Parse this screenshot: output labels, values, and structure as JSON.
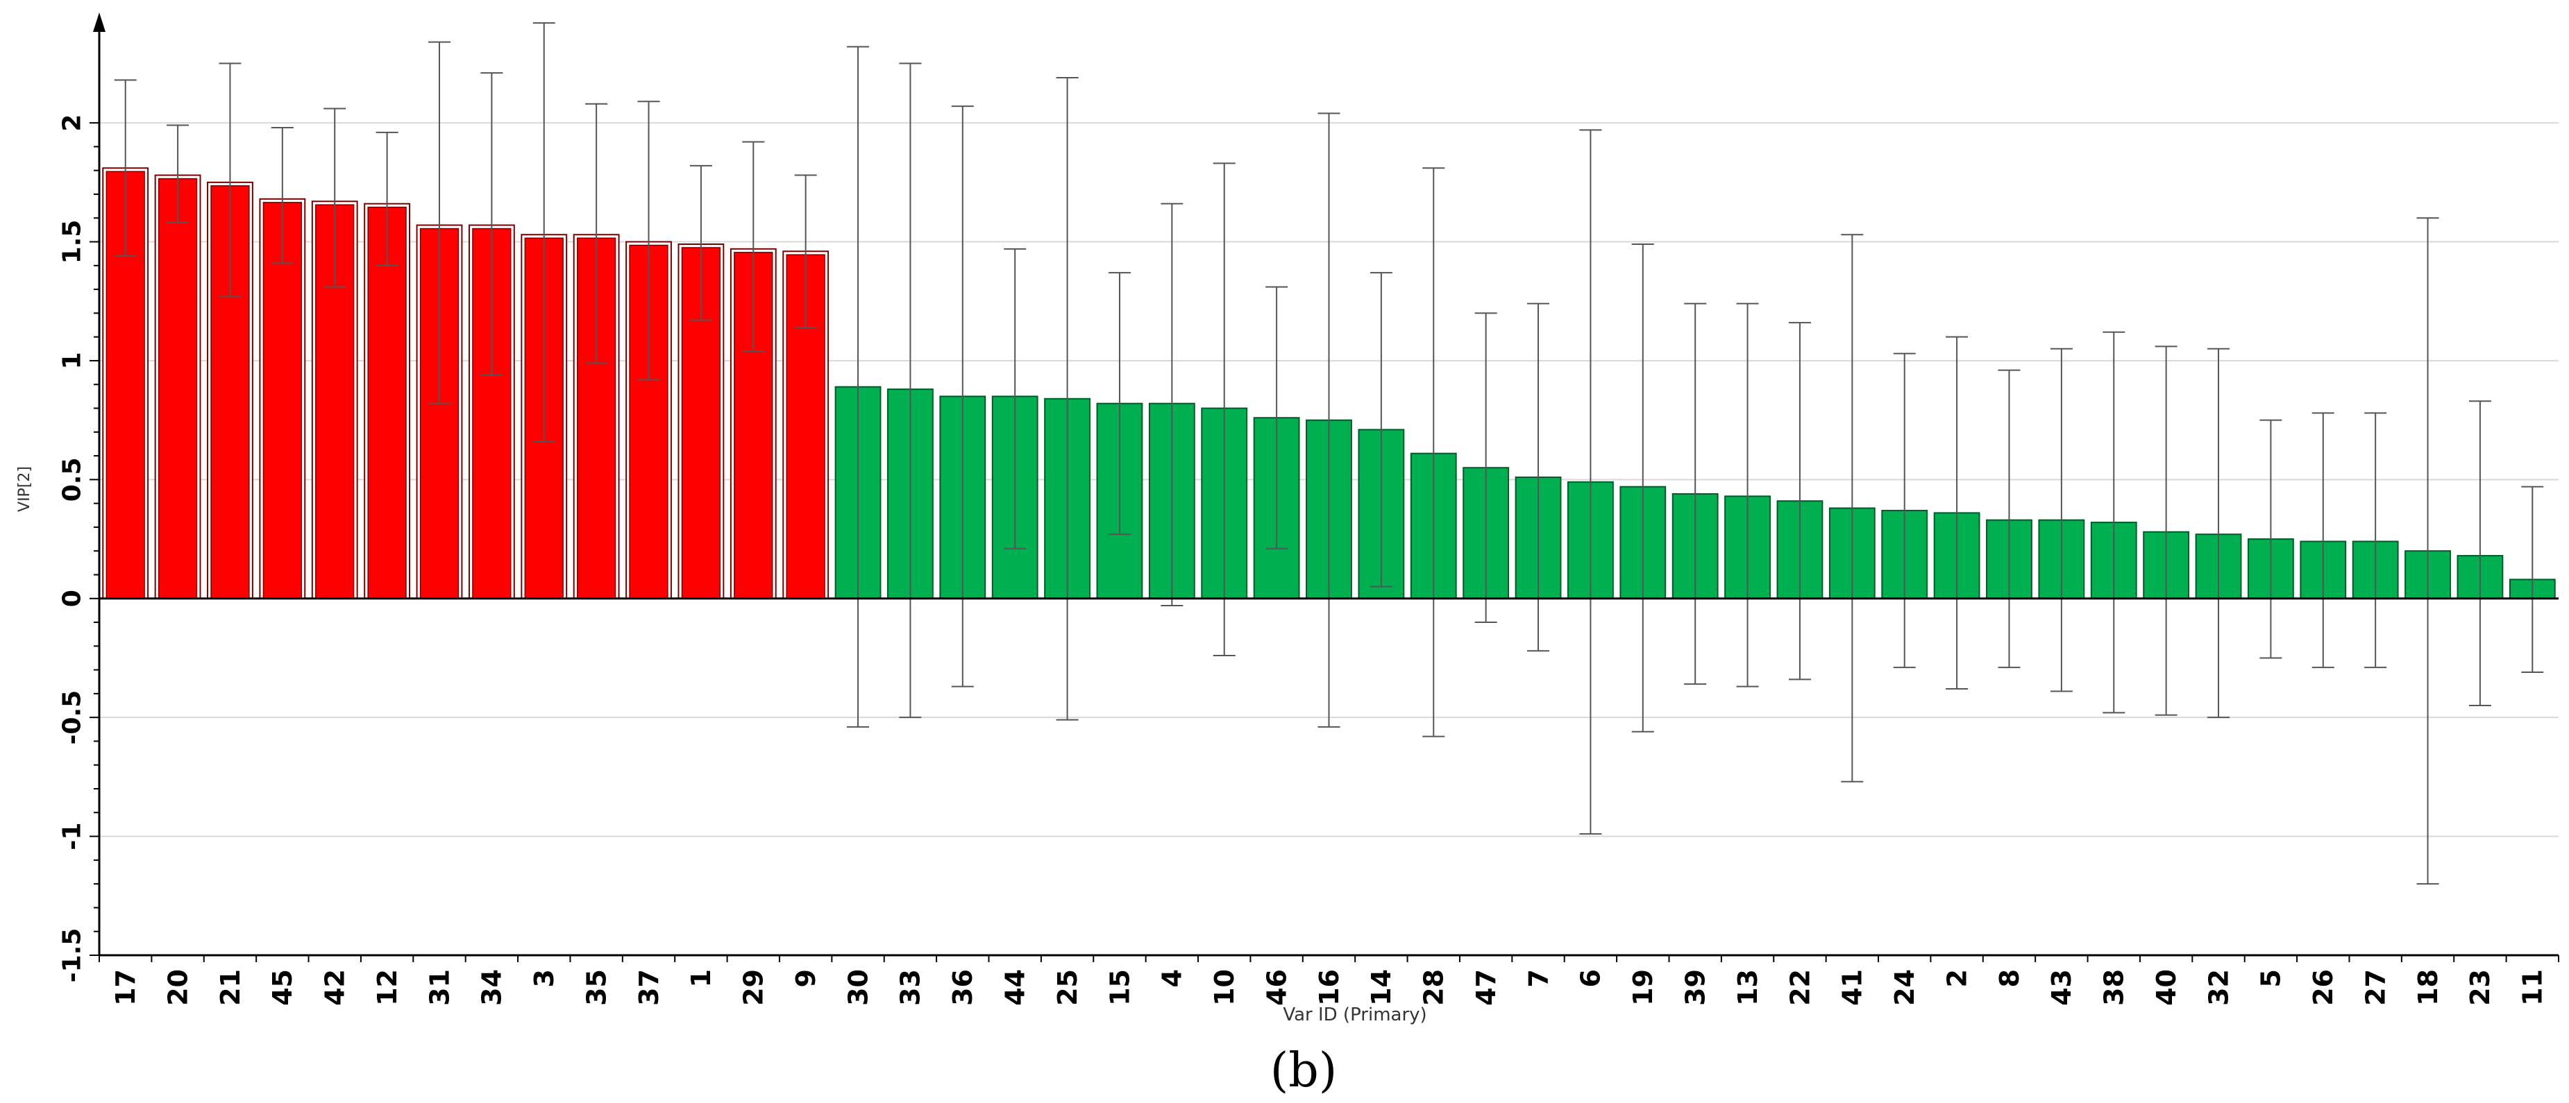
{
  "panel_label": "(b)",
  "colors": {
    "vip_high": "#ff0000",
    "vip_high_outline": "#7a0000",
    "vip_low": "#00b050",
    "vip_low_outline": "#005a2b",
    "error_bar": "#555555",
    "grid": "#d9d9d9",
    "axis": "#000000"
  },
  "chart_data": {
    "type": "bar",
    "xlabel": "Var ID (Primary)",
    "ylabel": "VIP[2]",
    "ylim": [
      -1.5,
      2.4
    ],
    "yticks": [
      2,
      1.5,
      1,
      0.5,
      0,
      -0.5,
      -1,
      -1.5
    ],
    "ytick_labels": [
      "2",
      "1.5",
      "1",
      "0.5",
      "0",
      "-0.5",
      "-1",
      "-1.5"
    ],
    "grid": true,
    "categories": [
      "17",
      "20",
      "21",
      "45",
      "42",
      "12",
      "31",
      "34",
      "3",
      "35",
      "37",
      "1",
      "29",
      "9",
      "30",
      "33",
      "36",
      "44",
      "25",
      "15",
      "4",
      "10",
      "46",
      "16",
      "14",
      "28",
      "47",
      "7",
      "6",
      "19",
      "39",
      "13",
      "22",
      "41",
      "24",
      "2",
      "8",
      "43",
      "38",
      "40",
      "32",
      "5",
      "26",
      "27",
      "18",
      "23",
      "11"
    ],
    "values": [
      1.81,
      1.78,
      1.75,
      1.68,
      1.67,
      1.66,
      1.57,
      1.57,
      1.53,
      1.53,
      1.5,
      1.49,
      1.47,
      1.46,
      0.89,
      0.88,
      0.85,
      0.85,
      0.84,
      0.82,
      0.82,
      0.8,
      0.76,
      0.75,
      0.71,
      0.61,
      0.55,
      0.51,
      0.49,
      0.47,
      0.44,
      0.43,
      0.41,
      0.38,
      0.37,
      0.36,
      0.33,
      0.33,
      0.32,
      0.28,
      0.27,
      0.25,
      0.24,
      0.24,
      0.2,
      0.18,
      0.08
    ],
    "error_low": [
      1.44,
      1.58,
      1.27,
      1.41,
      1.31,
      1.4,
      0.82,
      0.94,
      0.66,
      0.99,
      0.92,
      1.17,
      1.04,
      1.14,
      -0.54,
      -0.5,
      -0.37,
      0.21,
      -0.51,
      0.27,
      -0.03,
      -0.24,
      0.21,
      -0.54,
      0.05,
      -0.58,
      -0.1,
      -0.22,
      -0.99,
      -0.56,
      -0.36,
      -0.37,
      -0.34,
      -0.77,
      -0.29,
      -0.38,
      -0.29,
      -0.39,
      -0.48,
      -0.49,
      -0.5,
      -0.25,
      -0.29,
      -0.29,
      -1.2,
      -0.45,
      -0.31
    ],
    "error_high": [
      2.18,
      1.99,
      2.25,
      1.98,
      2.06,
      1.96,
      2.34,
      2.21,
      2.42,
      2.08,
      2.09,
      1.82,
      1.92,
      1.78,
      2.32,
      2.25,
      2.07,
      1.47,
      2.19,
      1.37,
      1.66,
      1.83,
      1.31,
      2.04,
      1.37,
      1.81,
      1.2,
      1.24,
      1.97,
      1.49,
      1.24,
      1.24,
      1.16,
      1.53,
      1.03,
      1.1,
      0.96,
      1.05,
      1.12,
      1.06,
      1.05,
      0.75,
      0.78,
      0.78,
      1.6,
      0.83,
      0.47
    ],
    "highlight_count": 14
  }
}
